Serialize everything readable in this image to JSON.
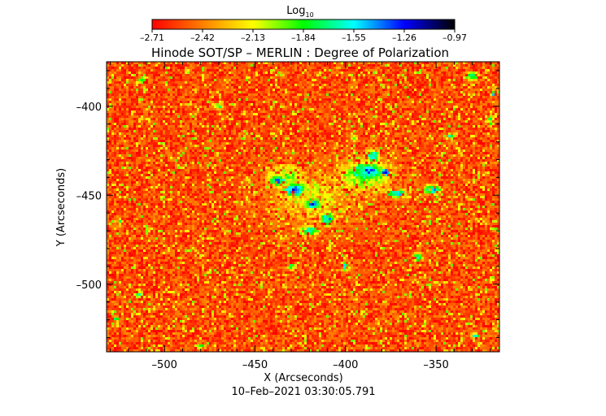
{
  "chart_data": {
    "type": "heatmap",
    "title": "Hinode SOT/SP – MERLIN : Degree of Polarization",
    "xlabel": "X (Arcseconds)",
    "ylabel": "Y (Arcseconds)",
    "timestamp": "10–Feb–2021 03:30:05.791",
    "xlim": [
      -532,
      -315
    ],
    "ylim": [
      -538,
      -375
    ],
    "x_ticks": [
      -500,
      -450,
      -400,
      -350
    ],
    "y_ticks": [
      -400,
      -450,
      -500
    ],
    "colorbar": {
      "label": "Log",
      "label_subscript": "10",
      "range": [
        -2.71,
        -0.97
      ],
      "ticks": [
        "–2.71",
        "–2.42",
        "–2.13",
        "–1.84",
        "–1.55",
        "–1.26",
        "–0.97"
      ],
      "colors": [
        "#ff0000",
        "#ff7f00",
        "#ffff00",
        "#00ff00",
        "#00ffff",
        "#0000ff",
        "#000000"
      ]
    },
    "background_level": -2.55,
    "features": [
      {
        "x": -428,
        "y": -447,
        "rx": 9,
        "ry": 5,
        "value": -1.3
      },
      {
        "x": -437,
        "y": -442,
        "rx": 6,
        "ry": 4,
        "value": -1.45
      },
      {
        "x": -418,
        "y": -455,
        "rx": 6,
        "ry": 4,
        "value": -1.4
      },
      {
        "x": -410,
        "y": -463,
        "rx": 5,
        "ry": 5,
        "value": -1.5
      },
      {
        "x": -420,
        "y": -470,
        "rx": 7,
        "ry": 3,
        "value": -1.5
      },
      {
        "x": -433,
        "y": -440,
        "rx": 14,
        "ry": 9,
        "value": -1.95
      },
      {
        "x": -388,
        "y": -437,
        "rx": 14,
        "ry": 7,
        "value": -1.45
      },
      {
        "x": -378,
        "y": -437,
        "rx": 3,
        "ry": 3,
        "value": -1.05
      },
      {
        "x": -385,
        "y": -428,
        "rx": 5,
        "ry": 5,
        "value": -1.6
      },
      {
        "x": -372,
        "y": -449,
        "rx": 7,
        "ry": 3,
        "value": -1.4
      },
      {
        "x": -352,
        "y": -447,
        "rx": 6,
        "ry": 3,
        "value": -1.5
      },
      {
        "x": -390,
        "y": -440,
        "rx": 22,
        "ry": 12,
        "value": -2.0
      },
      {
        "x": -418,
        "y": -452,
        "rx": 30,
        "ry": 18,
        "value": -2.2
      },
      {
        "x": -400,
        "y": -490,
        "rx": 3,
        "ry": 3,
        "value": -1.5
      },
      {
        "x": -360,
        "y": -485,
        "rx": 3,
        "ry": 3,
        "value": -1.45
      },
      {
        "x": -514,
        "y": -506,
        "rx": 3,
        "ry": 2,
        "value": -1.6
      },
      {
        "x": -527,
        "y": -520,
        "rx": 2,
        "ry": 2,
        "value": -1.6
      },
      {
        "x": -330,
        "y": -383,
        "rx": 4,
        "ry": 3,
        "value": -1.6
      },
      {
        "x": -318,
        "y": -393,
        "rx": 2,
        "ry": 2,
        "value": -1.4
      },
      {
        "x": -328,
        "y": -529,
        "rx": 3,
        "ry": 2,
        "value": -1.6
      },
      {
        "x": -512,
        "y": -385,
        "rx": 3,
        "ry": 3,
        "value": -1.75
      },
      {
        "x": -470,
        "y": -400,
        "rx": 3,
        "ry": 2,
        "value": -1.85
      },
      {
        "x": -342,
        "y": -417,
        "rx": 3,
        "ry": 3,
        "value": -1.75
      },
      {
        "x": -320,
        "y": -408,
        "rx": 3,
        "ry": 4,
        "value": -1.8
      },
      {
        "x": -395,
        "y": -418,
        "rx": 3,
        "ry": 2,
        "value": -1.85
      },
      {
        "x": -480,
        "y": -535,
        "rx": 3,
        "ry": 2,
        "value": -1.75
      },
      {
        "x": -430,
        "y": -490,
        "rx": 3,
        "ry": 2,
        "value": -1.8
      },
      {
        "x": -525,
        "y": -465,
        "rx": 3,
        "ry": 3,
        "value": -1.9
      },
      {
        "x": -315,
        "y": -525,
        "rx": 3,
        "ry": 3,
        "value": -1.85
      }
    ]
  }
}
